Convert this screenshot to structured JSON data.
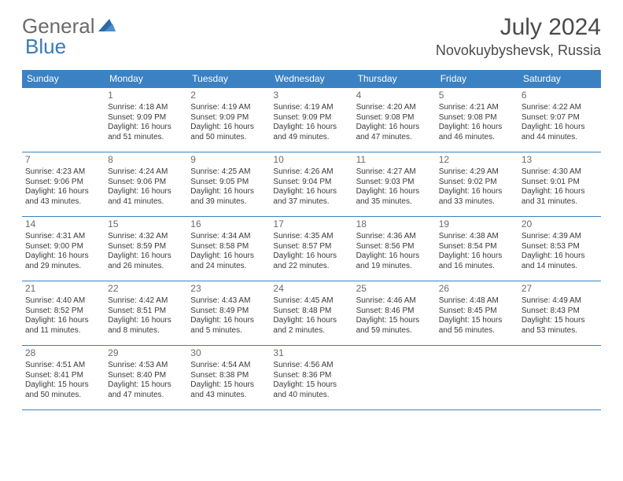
{
  "brand": {
    "general": "General",
    "blue": "Blue"
  },
  "header": {
    "month": "July 2024",
    "location": "Novokuybyshevsk, Russia"
  },
  "colors": {
    "header_bg": "#3a82c4",
    "header_text": "#ffffff",
    "border": "#3a82c4",
    "daynum": "#6b6b6b",
    "body_text": "#3a3a3a",
    "logo_gray": "#6b6b6b",
    "logo_blue": "#3a7ab8"
  },
  "weekdays": [
    "Sunday",
    "Monday",
    "Tuesday",
    "Wednesday",
    "Thursday",
    "Friday",
    "Saturday"
  ],
  "grid": [
    [
      {
        "day": "",
        "sunrise": "",
        "sunset": "",
        "daylight": ""
      },
      {
        "day": "1",
        "sunrise": "Sunrise: 4:18 AM",
        "sunset": "Sunset: 9:09 PM",
        "daylight": "Daylight: 16 hours and 51 minutes."
      },
      {
        "day": "2",
        "sunrise": "Sunrise: 4:19 AM",
        "sunset": "Sunset: 9:09 PM",
        "daylight": "Daylight: 16 hours and 50 minutes."
      },
      {
        "day": "3",
        "sunrise": "Sunrise: 4:19 AM",
        "sunset": "Sunset: 9:09 PM",
        "daylight": "Daylight: 16 hours and 49 minutes."
      },
      {
        "day": "4",
        "sunrise": "Sunrise: 4:20 AM",
        "sunset": "Sunset: 9:08 PM",
        "daylight": "Daylight: 16 hours and 47 minutes."
      },
      {
        "day": "5",
        "sunrise": "Sunrise: 4:21 AM",
        "sunset": "Sunset: 9:08 PM",
        "daylight": "Daylight: 16 hours and 46 minutes."
      },
      {
        "day": "6",
        "sunrise": "Sunrise: 4:22 AM",
        "sunset": "Sunset: 9:07 PM",
        "daylight": "Daylight: 16 hours and 44 minutes."
      }
    ],
    [
      {
        "day": "7",
        "sunrise": "Sunrise: 4:23 AM",
        "sunset": "Sunset: 9:06 PM",
        "daylight": "Daylight: 16 hours and 43 minutes."
      },
      {
        "day": "8",
        "sunrise": "Sunrise: 4:24 AM",
        "sunset": "Sunset: 9:06 PM",
        "daylight": "Daylight: 16 hours and 41 minutes."
      },
      {
        "day": "9",
        "sunrise": "Sunrise: 4:25 AM",
        "sunset": "Sunset: 9:05 PM",
        "daylight": "Daylight: 16 hours and 39 minutes."
      },
      {
        "day": "10",
        "sunrise": "Sunrise: 4:26 AM",
        "sunset": "Sunset: 9:04 PM",
        "daylight": "Daylight: 16 hours and 37 minutes."
      },
      {
        "day": "11",
        "sunrise": "Sunrise: 4:27 AM",
        "sunset": "Sunset: 9:03 PM",
        "daylight": "Daylight: 16 hours and 35 minutes."
      },
      {
        "day": "12",
        "sunrise": "Sunrise: 4:29 AM",
        "sunset": "Sunset: 9:02 PM",
        "daylight": "Daylight: 16 hours and 33 minutes."
      },
      {
        "day": "13",
        "sunrise": "Sunrise: 4:30 AM",
        "sunset": "Sunset: 9:01 PM",
        "daylight": "Daylight: 16 hours and 31 minutes."
      }
    ],
    [
      {
        "day": "14",
        "sunrise": "Sunrise: 4:31 AM",
        "sunset": "Sunset: 9:00 PM",
        "daylight": "Daylight: 16 hours and 29 minutes."
      },
      {
        "day": "15",
        "sunrise": "Sunrise: 4:32 AM",
        "sunset": "Sunset: 8:59 PM",
        "daylight": "Daylight: 16 hours and 26 minutes."
      },
      {
        "day": "16",
        "sunrise": "Sunrise: 4:34 AM",
        "sunset": "Sunset: 8:58 PM",
        "daylight": "Daylight: 16 hours and 24 minutes."
      },
      {
        "day": "17",
        "sunrise": "Sunrise: 4:35 AM",
        "sunset": "Sunset: 8:57 PM",
        "daylight": "Daylight: 16 hours and 22 minutes."
      },
      {
        "day": "18",
        "sunrise": "Sunrise: 4:36 AM",
        "sunset": "Sunset: 8:56 PM",
        "daylight": "Daylight: 16 hours and 19 minutes."
      },
      {
        "day": "19",
        "sunrise": "Sunrise: 4:38 AM",
        "sunset": "Sunset: 8:54 PM",
        "daylight": "Daylight: 16 hours and 16 minutes."
      },
      {
        "day": "20",
        "sunrise": "Sunrise: 4:39 AM",
        "sunset": "Sunset: 8:53 PM",
        "daylight": "Daylight: 16 hours and 14 minutes."
      }
    ],
    [
      {
        "day": "21",
        "sunrise": "Sunrise: 4:40 AM",
        "sunset": "Sunset: 8:52 PM",
        "daylight": "Daylight: 16 hours and 11 minutes."
      },
      {
        "day": "22",
        "sunrise": "Sunrise: 4:42 AM",
        "sunset": "Sunset: 8:51 PM",
        "daylight": "Daylight: 16 hours and 8 minutes."
      },
      {
        "day": "23",
        "sunrise": "Sunrise: 4:43 AM",
        "sunset": "Sunset: 8:49 PM",
        "daylight": "Daylight: 16 hours and 5 minutes."
      },
      {
        "day": "24",
        "sunrise": "Sunrise: 4:45 AM",
        "sunset": "Sunset: 8:48 PM",
        "daylight": "Daylight: 16 hours and 2 minutes."
      },
      {
        "day": "25",
        "sunrise": "Sunrise: 4:46 AM",
        "sunset": "Sunset: 8:46 PM",
        "daylight": "Daylight: 15 hours and 59 minutes."
      },
      {
        "day": "26",
        "sunrise": "Sunrise: 4:48 AM",
        "sunset": "Sunset: 8:45 PM",
        "daylight": "Daylight: 15 hours and 56 minutes."
      },
      {
        "day": "27",
        "sunrise": "Sunrise: 4:49 AM",
        "sunset": "Sunset: 8:43 PM",
        "daylight": "Daylight: 15 hours and 53 minutes."
      }
    ],
    [
      {
        "day": "28",
        "sunrise": "Sunrise: 4:51 AM",
        "sunset": "Sunset: 8:41 PM",
        "daylight": "Daylight: 15 hours and 50 minutes."
      },
      {
        "day": "29",
        "sunrise": "Sunrise: 4:53 AM",
        "sunset": "Sunset: 8:40 PM",
        "daylight": "Daylight: 15 hours and 47 minutes."
      },
      {
        "day": "30",
        "sunrise": "Sunrise: 4:54 AM",
        "sunset": "Sunset: 8:38 PM",
        "daylight": "Daylight: 15 hours and 43 minutes."
      },
      {
        "day": "31",
        "sunrise": "Sunrise: 4:56 AM",
        "sunset": "Sunset: 8:36 PM",
        "daylight": "Daylight: 15 hours and 40 minutes."
      },
      {
        "day": "",
        "sunrise": "",
        "sunset": "",
        "daylight": ""
      },
      {
        "day": "",
        "sunrise": "",
        "sunset": "",
        "daylight": ""
      },
      {
        "day": "",
        "sunrise": "",
        "sunset": "",
        "daylight": ""
      }
    ]
  ]
}
